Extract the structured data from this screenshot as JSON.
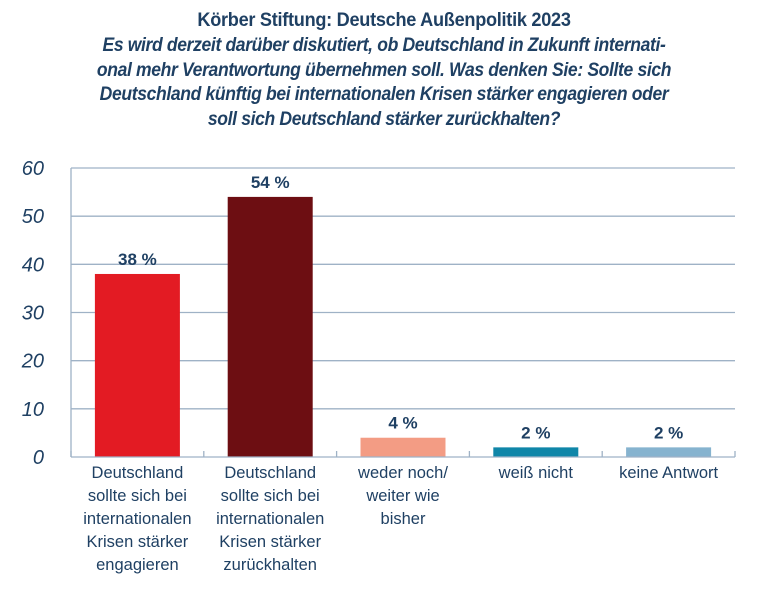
{
  "chart_data": {
    "type": "bar",
    "title": "Körber Stiftung: Deutsche Außenpolitik 2023",
    "subtitle_lines": [
      "Es wird derzeit darüber diskutiert, ob Deutschland in Zukunft internati-",
      "onal mehr Verantwortung übernehmen soll. Was denken Sie: Sollte sich",
      "Deutschland künftig bei internationalen Krisen stärker engagieren oder",
      "soll sich Deutschland stärker zurückhalten?"
    ],
    "categories": [
      [
        "Deutschland",
        "sollte sich bei",
        "internationalen",
        "Krisen stärker",
        "engagieren"
      ],
      [
        "Deutschland",
        "sollte sich bei",
        "internationalen",
        "Krisen stärker",
        "zurückhalten"
      ],
      [
        "weder noch/",
        "weiter wie",
        "bisher"
      ],
      [
        "weiß nicht"
      ],
      [
        "keine Antwort"
      ]
    ],
    "values": [
      38,
      54,
      4,
      2,
      2
    ],
    "value_labels": [
      "38 %",
      "54 %",
      "4 %",
      "2 %",
      "2 %"
    ],
    "colors": [
      "#e31b23",
      "#6d0e12",
      "#f39c84",
      "#0f86a8",
      "#86b3cf"
    ],
    "xlabel": "",
    "ylabel": "",
    "ylim": [
      0,
      60
    ],
    "yticks": [
      0,
      10,
      20,
      30,
      40,
      50,
      60
    ],
    "grid": true,
    "legend": "none",
    "grid_color": "#9fb2c6",
    "text_color": "#1f4063"
  }
}
